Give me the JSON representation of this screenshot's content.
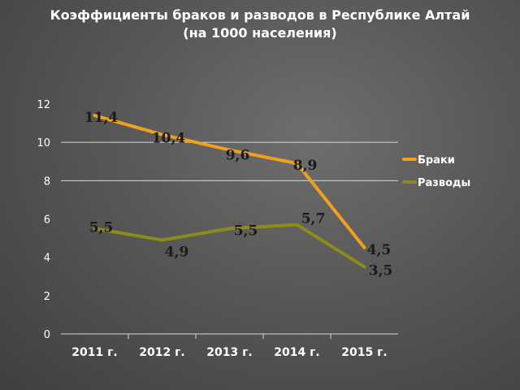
{
  "chart_data": {
    "type": "line",
    "title_line1": "Коэффициенты браков и разводов в Республике Алтай",
    "title_line2": "(на 1000 населения)",
    "categories": [
      "2011 г.",
      "2012 г.",
      "2013 г.",
      "2014 г.",
      "2015 г."
    ],
    "series": [
      {
        "name": "Браки",
        "values": [
          11.4,
          10.4,
          9.6,
          8.9,
          4.5
        ],
        "labels": [
          "11,4",
          "10,4",
          "9,6",
          "8,9",
          "4,5"
        ],
        "color": "#f0a020",
        "label_color": "#1a1a1a"
      },
      {
        "name": "Разводы",
        "values": [
          5.5,
          4.9,
          5.5,
          5.7,
          3.5
        ],
        "labels": [
          "5,5",
          "4,9",
          "5,5",
          "5,7",
          "3,5"
        ],
        "color": "#8c8c1a",
        "label_color": "#1a1a1a"
      }
    ],
    "yticks": [
      "0",
      "2",
      "4",
      "6",
      "8",
      "10",
      "12"
    ],
    "ylim": [
      0,
      12
    ],
    "grid": true,
    "gridlines_at": [
      8,
      10
    ],
    "legend_position": "right"
  }
}
